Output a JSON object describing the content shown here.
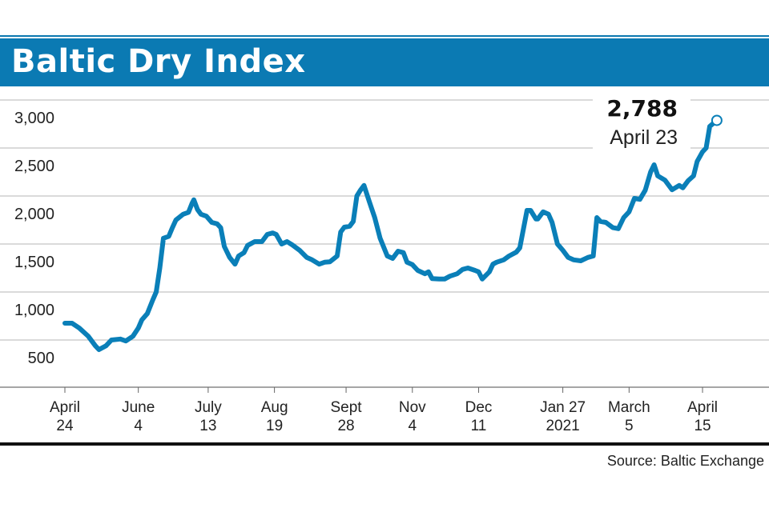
{
  "header": {
    "title": "Baltic Dry Index",
    "color": "#0b7ab3"
  },
  "source": "Source: Baltic Exchange",
  "chart_data": {
    "type": "line",
    "title": "Baltic Dry Index",
    "line_color": "#0a7fb8",
    "ylim": [
      0,
      3000
    ],
    "yticks": [
      500,
      1000,
      1500,
      2000,
      2500,
      3000
    ],
    "ytick_labels": [
      "500",
      "1,000",
      "1,500",
      "2,000",
      "2,500",
      "3,000"
    ],
    "grid": true,
    "xticks": [
      {
        "date": "2020-04-24",
        "label": [
          "April",
          "24"
        ]
      },
      {
        "date": "2020-06-04",
        "label": [
          "June",
          "4"
        ]
      },
      {
        "date": "2020-07-13",
        "label": [
          "July",
          "13"
        ]
      },
      {
        "date": "2020-08-19",
        "label": [
          "Aug",
          "19"
        ]
      },
      {
        "date": "2020-09-28",
        "label": [
          "Sept",
          "28"
        ]
      },
      {
        "date": "2020-11-04",
        "label": [
          "Nov",
          "4"
        ]
      },
      {
        "date": "2020-12-11",
        "label": [
          "Dec",
          "11"
        ]
      },
      {
        "date": "2021-01-27",
        "label": [
          "Jan 27",
          "2021"
        ]
      },
      {
        "date": "2021-03-05",
        "label": [
          "March",
          "5"
        ]
      },
      {
        "date": "2021-04-15",
        "label": [
          "April",
          "15"
        ]
      }
    ],
    "annotation": {
      "value": "2,788",
      "date": "April 23"
    },
    "series": [
      {
        "x": [
          "2020-04-24",
          "2020-04-28",
          "2020-05-02",
          "2020-05-07",
          "2020-05-11",
          "2020-05-13",
          "2020-05-17",
          "2020-05-20",
          "2020-05-25",
          "2020-05-28",
          "2020-06-01",
          "2020-06-04",
          "2020-06-06",
          "2020-06-09",
          "2020-06-12",
          "2020-06-14",
          "2020-06-16",
          "2020-06-18",
          "2020-06-21",
          "2020-06-23",
          "2020-06-25",
          "2020-06-29",
          "2020-07-02",
          "2020-07-04",
          "2020-07-05",
          "2020-07-07",
          "2020-07-09",
          "2020-07-12",
          "2020-07-15",
          "2020-07-18",
          "2020-07-20",
          "2020-07-22",
          "2020-07-25",
          "2020-07-28",
          "2020-07-30",
          "2020-08-02",
          "2020-08-04",
          "2020-08-08",
          "2020-08-12",
          "2020-08-15",
          "2020-08-18",
          "2020-08-20",
          "2020-08-23",
          "2020-08-26",
          "2020-08-29",
          "2020-09-02",
          "2020-09-06",
          "2020-09-09",
          "2020-09-13",
          "2020-09-16",
          "2020-09-19",
          "2020-09-23",
          "2020-09-25",
          "2020-09-27",
          "2020-09-30",
          "2020-10-02",
          "2020-10-04",
          "2020-10-06",
          "2020-10-08",
          "2020-10-11",
          "2020-10-14",
          "2020-10-17",
          "2020-10-21",
          "2020-10-24",
          "2020-10-27",
          "2020-10-30",
          "2020-11-01",
          "2020-11-04",
          "2020-11-07",
          "2020-11-11",
          "2020-11-13",
          "2020-11-15",
          "2020-11-19",
          "2020-11-22",
          "2020-11-25",
          "2020-11-29",
          "2020-12-02",
          "2020-12-05",
          "2020-12-09",
          "2020-12-11",
          "2020-12-13",
          "2020-12-17",
          "2020-12-19",
          "2020-12-21",
          "2020-12-25",
          "2020-12-28",
          "2021-01-01",
          "2021-01-03",
          "2021-01-07",
          "2021-01-09",
          "2021-01-12",
          "2021-01-13",
          "2021-01-16",
          "2021-01-19",
          "2021-01-21",
          "2021-01-24",
          "2021-01-27",
          "2021-01-30",
          "2021-02-02",
          "2021-02-06",
          "2021-02-10",
          "2021-02-13",
          "2021-02-15",
          "2021-02-17",
          "2021-02-20",
          "2021-02-24",
          "2021-02-27",
          "2021-03-02",
          "2021-03-05",
          "2021-03-08",
          "2021-03-11",
          "2021-03-14",
          "2021-03-17",
          "2021-03-19",
          "2021-03-21",
          "2021-03-25",
          "2021-03-29",
          "2021-04-02",
          "2021-04-04",
          "2021-04-07",
          "2021-04-10",
          "2021-04-12",
          "2021-04-15",
          "2021-04-17",
          "2021-04-19",
          "2021-04-23"
        ],
        "y": [
          675,
          675,
          625,
          540,
          440,
          400,
          440,
          500,
          510,
          490,
          540,
          625,
          710,
          775,
          915,
          1000,
          1250,
          1560,
          1580,
          1670,
          1750,
          1810,
          1830,
          1925,
          1960,
          1860,
          1810,
          1790,
          1725,
          1710,
          1670,
          1475,
          1360,
          1290,
          1375,
          1410,
          1485,
          1525,
          1525,
          1600,
          1615,
          1600,
          1500,
          1525,
          1490,
          1435,
          1360,
          1335,
          1290,
          1310,
          1315,
          1375,
          1625,
          1675,
          1685,
          1735,
          2000,
          2060,
          2110,
          1940,
          1775,
          1560,
          1375,
          1350,
          1425,
          1410,
          1310,
          1285,
          1225,
          1190,
          1210,
          1140,
          1135,
          1135,
          1165,
          1190,
          1235,
          1250,
          1225,
          1210,
          1135,
          1210,
          1290,
          1310,
          1335,
          1375,
          1415,
          1460,
          1850,
          1850,
          1760,
          1760,
          1835,
          1810,
          1725,
          1500,
          1435,
          1360,
          1335,
          1325,
          1360,
          1375,
          1775,
          1735,
          1725,
          1670,
          1660,
          1775,
          1835,
          1975,
          1965,
          2060,
          2250,
          2325,
          2210,
          2165,
          2065,
          2110,
          2085,
          2160,
          2210,
          2360,
          2460,
          2500,
          2725,
          2788
        ]
      }
    ]
  }
}
